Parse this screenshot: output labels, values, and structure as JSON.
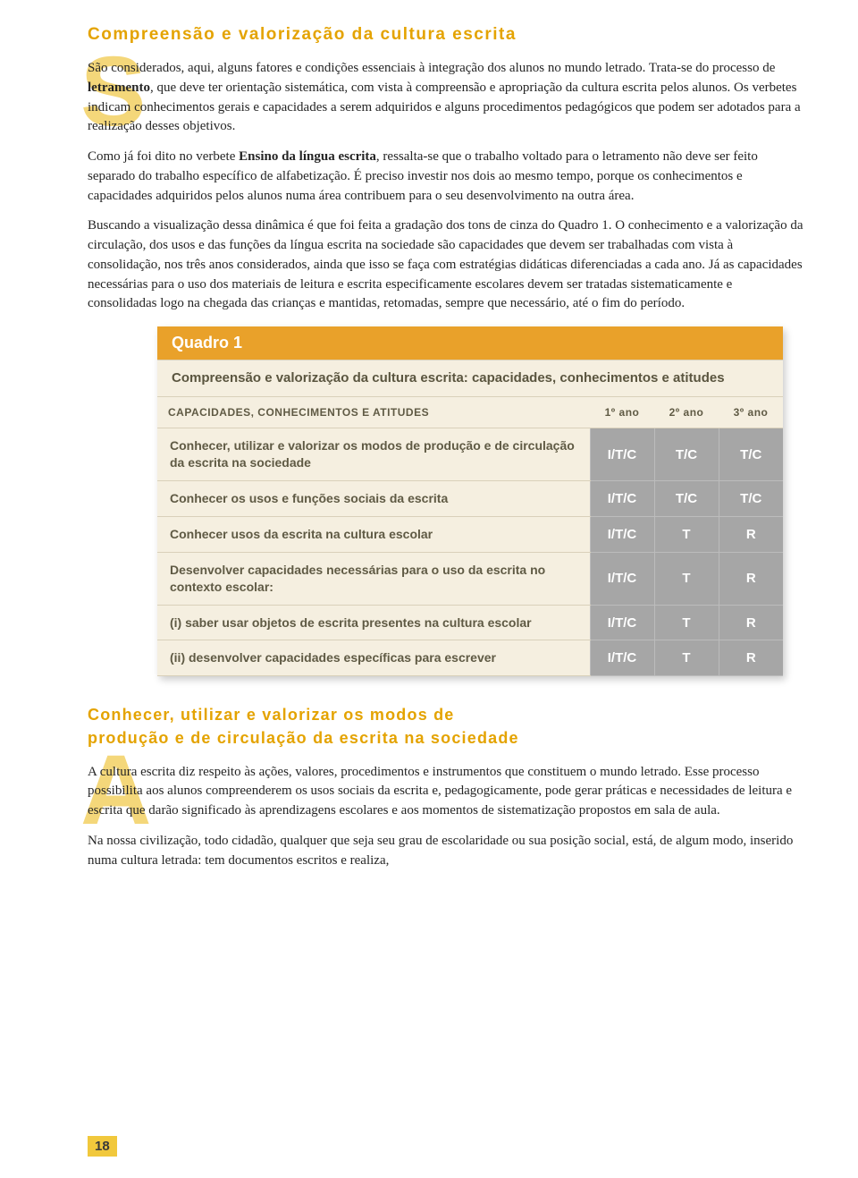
{
  "title": "Compreensão e valorização da cultura escrita",
  "dropcap1": "S",
  "para1": "São considerados, aqui, alguns fatores e condições essenciais à integração dos alunos no mundo letrado. Trata-se do processo de <b>letramento</b>, que deve ter orientação sistemática, com vista à compreensão e apropriação da cultura escrita pelos alunos. Os verbetes indicam conhecimentos gerais e capacidades a serem adquiridos e alguns procedimentos pedagógicos que podem ser adotados para a realização desses objetivos.",
  "para2": "Como já foi dito no verbete <b>Ensino da língua escrita</b>, ressalta-se que o trabalho voltado para o letramento não deve ser feito separado do trabalho específico de alfabetização. É preciso investir nos dois ao mesmo tempo, porque os conhecimentos e capacidades adquiridos pelos alunos numa área contribuem para o seu desenvolvimento na outra área.",
  "para3": "Buscando a visualização dessa dinâmica é que foi feita a gradação dos tons de cinza do Quadro 1. O conhecimento e a valorização da circulação, dos usos e das funções da língua escrita na sociedade são capacidades que devem ser trabalhadas com vista à consolidação, nos três anos considerados, ainda que isso se faça com estratégias didáticas diferenciadas a cada ano. Já as capacidades necessárias para o uso dos materiais de leitura e escrita especificamente escolares devem ser tratadas sistematicamente e consolidadas logo na chegada das crianças e mantidas, retomadas, sempre que necessário, até o fim do período.",
  "table": {
    "title": "Quadro 1",
    "subtitle": "Compreensão e valorização da cultura escrita: capacidades, conhecimentos e atitudes",
    "col_head": "CAPACIDADES, CONHECIMENTOS E ATITUDES",
    "years": [
      "1º ano",
      "2º ano",
      "3º ano"
    ],
    "rows": [
      {
        "desc": "Conhecer, utilizar e valorizar os modos de produção e de circulação da escrita na sociedade",
        "vals": [
          "I/T/C",
          "T/C",
          "T/C"
        ]
      },
      {
        "desc": "Conhecer os usos e funções sociais da escrita",
        "vals": [
          "I/T/C",
          "T/C",
          "T/C"
        ]
      },
      {
        "desc": "Conhecer usos da escrita na cultura escolar",
        "vals": [
          "I/T/C",
          "T",
          "R"
        ]
      },
      {
        "desc": "Desenvolver capacidades necessárias para o uso da escrita no contexto escolar:",
        "vals": [
          "I/T/C",
          "T",
          "R"
        ]
      },
      {
        "desc": "(i) saber usar objetos de escrita presentes na cultura escolar",
        "vals": [
          "I/T/C",
          "T",
          "R"
        ]
      },
      {
        "desc": "(ii) desenvolver capacidades específicas para escrever",
        "vals": [
          "I/T/C",
          "T",
          "R"
        ]
      }
    ]
  },
  "subtitle2": "Conhecer, utilizar e valorizar os modos de<br>produção e de circulação da escrita na sociedade",
  "dropcap2": "A",
  "para4": "A cultura escrita diz respeito às ações, valores, procedimentos e instrumentos que constituem o mundo letrado. Esse processo possibilita aos alunos compreenderem os usos sociais da escrita e, pedagogicamente, pode gerar práticas e necessidades de leitura e escrita que darão significado às aprendizagens escolares e aos momentos de sistematização propostos em sala de aula.",
  "para5": "Na nossa civilização, todo cidadão, qualquer que seja seu grau de escolaridade ou sua posição social, está, de algum modo, inserido numa cultura letrada: tem documentos escritos e realiza,",
  "page_number": "18"
}
